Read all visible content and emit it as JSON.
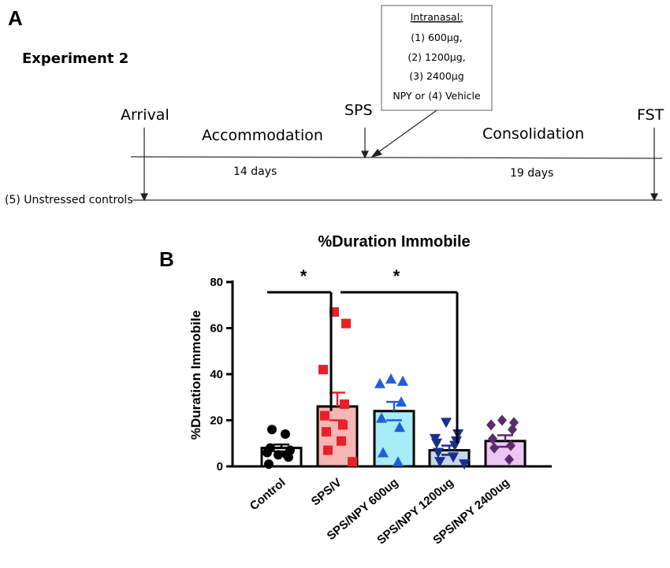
{
  "panel_a": {
    "letter": "A",
    "experiment_title": "Experiment 2",
    "box_lines": [
      "Intranasal:",
      "(1) 600µg,",
      "(2) 1200µg,",
      "(3) 2400µg",
      "NPY or (4) Vehicle"
    ],
    "arrival": "Arrival",
    "sps": "SPS",
    "fst": "FST",
    "accommodation": "Accommodation",
    "consolidation": "Consolidation",
    "accommodation_days": "14 days",
    "consolidation_days": "19 days",
    "unstressed": "(5) Unstressed controls"
  },
  "panel_b": {
    "letter": "B",
    "sig_markers": [
      "*",
      "*"
    ]
  },
  "chart_data": {
    "type": "bar",
    "title": "%Duration Immobile",
    "xlabel": "",
    "ylabel": "%Duration Immobile",
    "ylim": [
      0,
      80
    ],
    "yticks": [
      "0",
      "20",
      "40",
      "60",
      "80"
    ],
    "categories": [
      "Control",
      "SPS/V",
      "SPS/NPY 600ug",
      "SPS/NPY 1200ug",
      "SPS/NPY 2400ug"
    ],
    "values": [
      8,
      26,
      24,
      7,
      11
    ],
    "errors": [
      1.5,
      6,
      4,
      2,
      2.5
    ],
    "colors": [
      "#000000",
      "#e8202a",
      "#1f5fd8",
      "#1a2f8a",
      "#5b2a6b"
    ],
    "fills": [
      "#ffffff",
      "#f4b7b4",
      "#a7ecf7",
      "#c7d6ec",
      "#ecc7f3"
    ],
    "markers": [
      "circle",
      "square",
      "triangle-up",
      "triangle-down",
      "diamond"
    ],
    "points": [
      [
        5,
        7,
        6,
        4,
        1,
        5,
        8,
        14,
        16
      ],
      [
        67,
        62,
        42,
        27,
        22,
        18,
        15,
        11,
        7,
        2
      ],
      [
        38,
        37,
        36,
        28,
        21,
        17,
        6,
        2
      ],
      [
        19,
        14,
        12,
        11,
        10,
        9,
        6,
        4,
        2,
        1
      ],
      [
        20,
        19,
        18,
        16,
        12,
        9,
        8,
        3
      ]
    ],
    "comparisons": [
      {
        "from": "Control",
        "to": "SPS/V",
        "label": "*"
      },
      {
        "from": "SPS/V",
        "to": "SPS/NPY 1200ug",
        "label": "*"
      }
    ]
  }
}
